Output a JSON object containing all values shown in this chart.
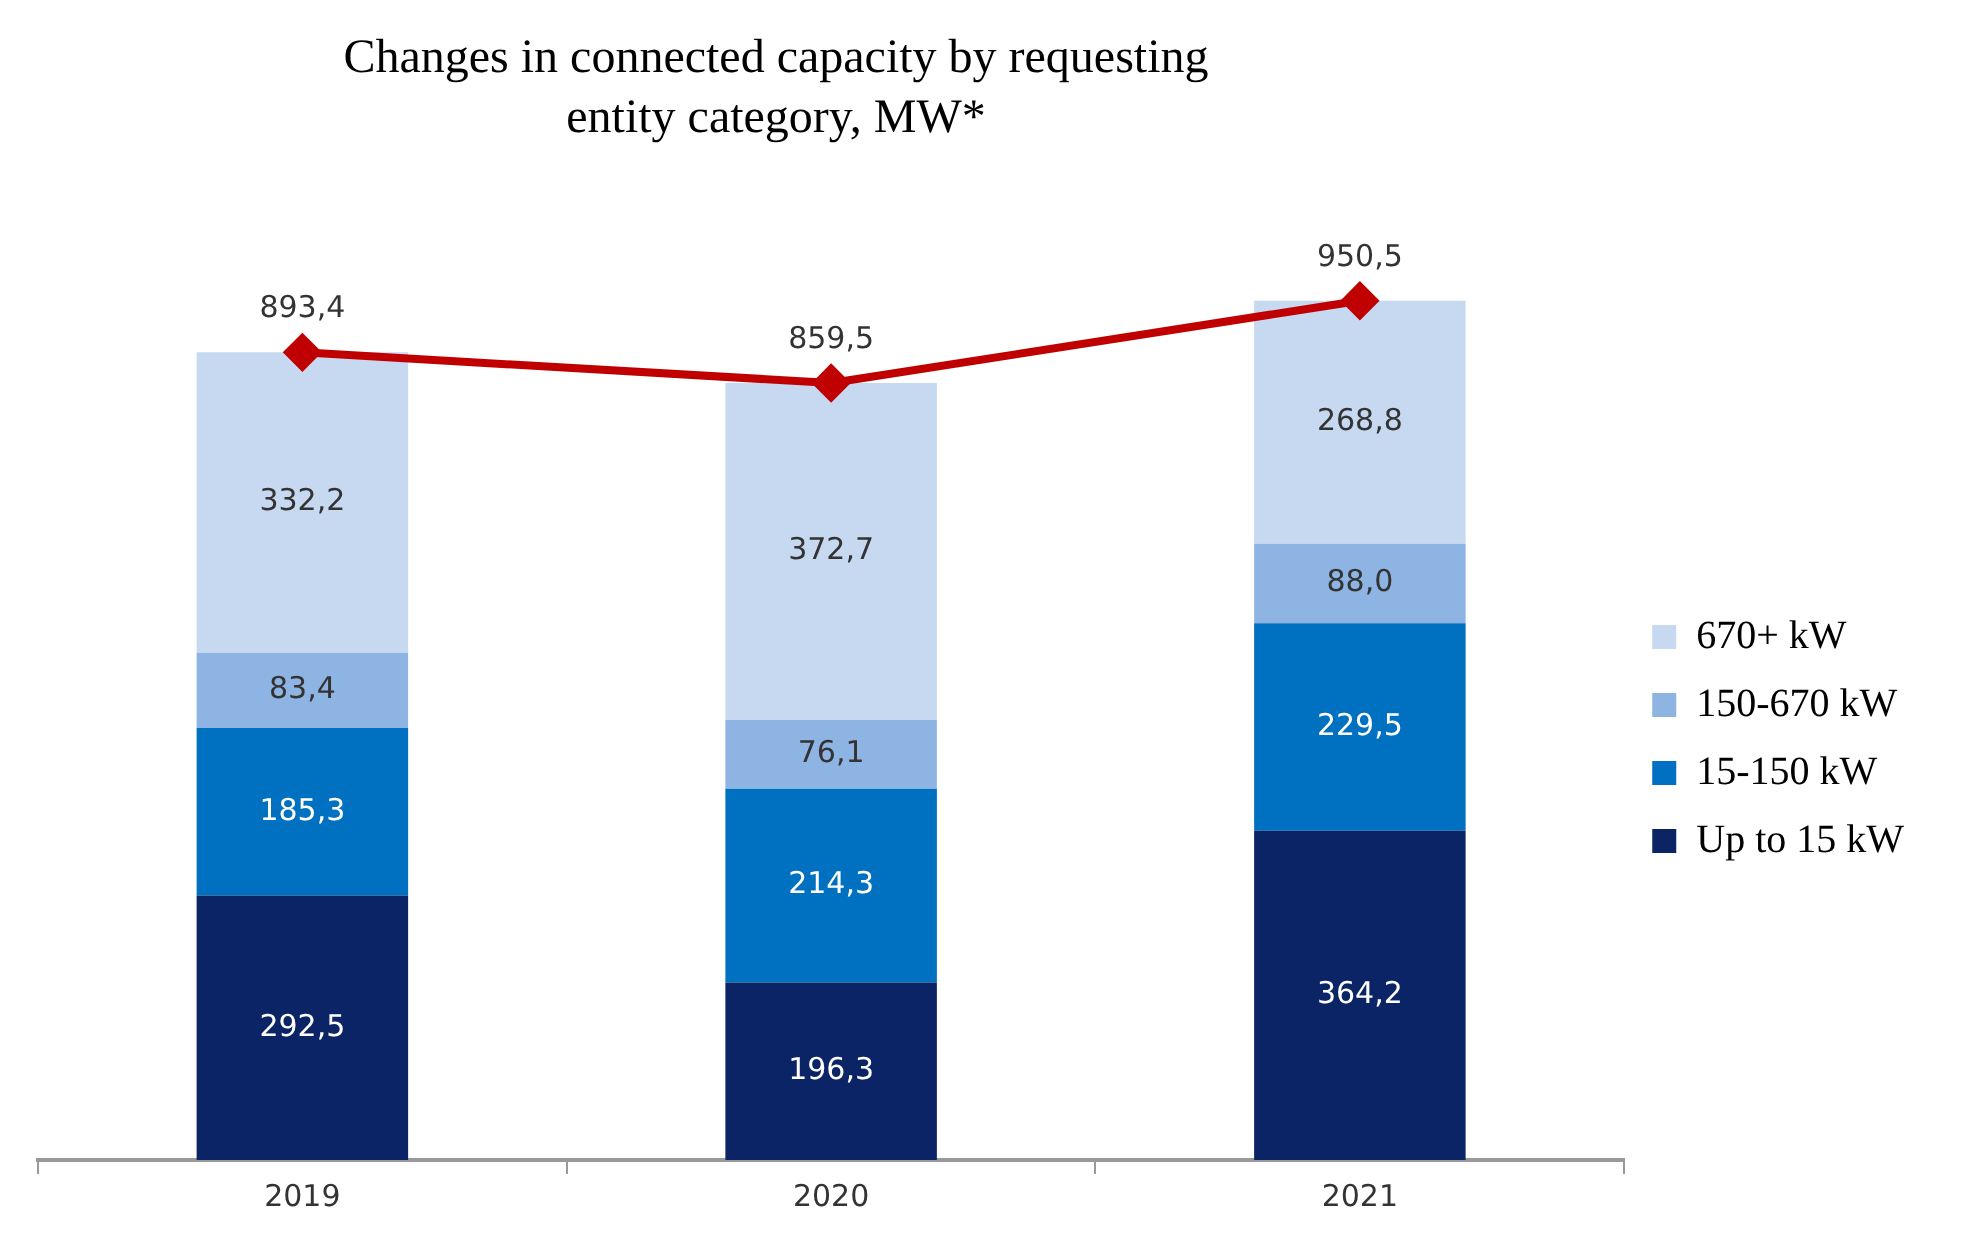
{
  "chart_data": {
    "type": "bar",
    "title": "Changes in connected capacity by requesting entity category, MW*",
    "categories": [
      "2019",
      "2020",
      "2021"
    ],
    "stacked": true,
    "legend": "right",
    "grid": false,
    "series": [
      {
        "name": "Up to 15 kW",
        "color": "#0b2466",
        "values": [
          292.5,
          196.3,
          364.2
        ],
        "value_labels": [
          "292,5",
          "196,3",
          "364,2"
        ]
      },
      {
        "name": "15-150 kW",
        "color": "#0070c0",
        "values": [
          185.3,
          214.3,
          229.5
        ],
        "value_labels": [
          "185,3",
          "214,3",
          "229,5"
        ]
      },
      {
        "name": "150-670 kW",
        "color": "#8eb4e3",
        "values": [
          83.4,
          76.1,
          88.0
        ],
        "value_labels": [
          "83,4",
          "76,1",
          "88,0"
        ]
      },
      {
        "name": "670+ kW",
        "color": "#c6d9f1",
        "values": [
          332.2,
          372.7,
          268.8
        ],
        "value_labels": [
          "332,2",
          "372,7",
          "268,8"
        ]
      },
      {
        "type": "line",
        "color": "#c00000",
        "marker": "diamond",
        "values": [
          893.4,
          859.5,
          950.5
        ],
        "value_labels": [
          "893,4",
          "859,5",
          "950,5"
        ]
      }
    ]
  }
}
